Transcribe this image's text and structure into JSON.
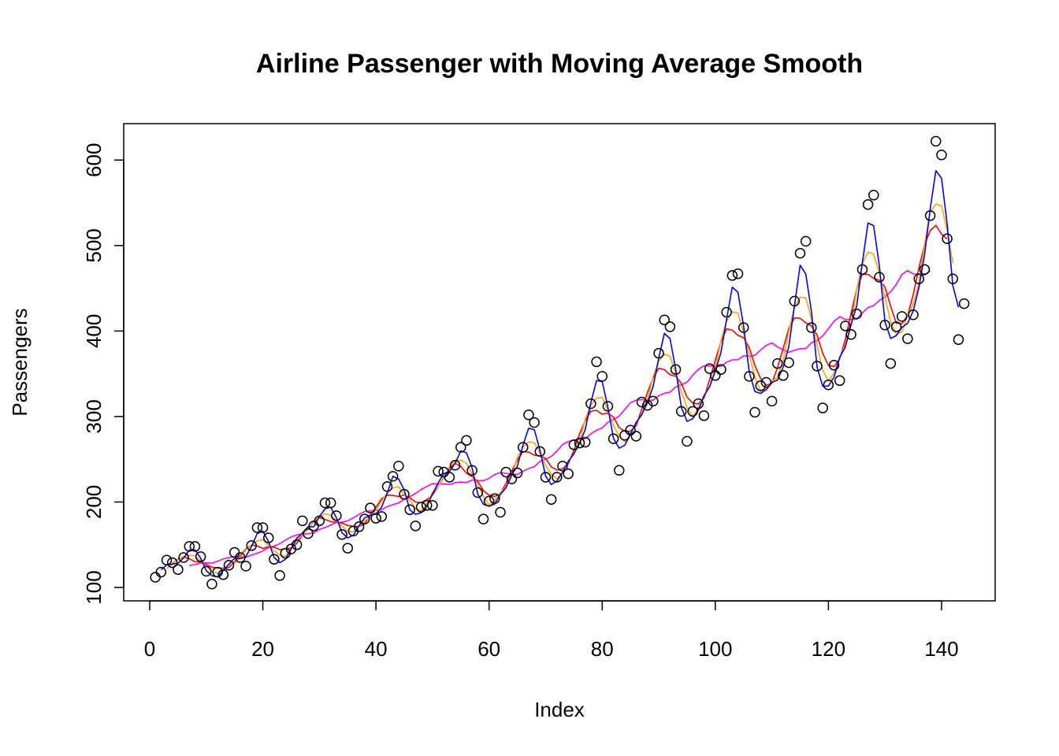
{
  "chart_data": {
    "type": "line",
    "title": "Airline Passenger with Moving Average Smooth",
    "xlabel": "Index",
    "ylabel": "Passengers",
    "xlim": [
      0,
      144
    ],
    "ylim": [
      100,
      622
    ],
    "x_ticks": [
      0,
      20,
      40,
      60,
      80,
      100,
      120,
      140
    ],
    "y_ticks": [
      100,
      200,
      300,
      400,
      500,
      600
    ],
    "grid": false,
    "legend": "none",
    "points": {
      "marker": "open-circle",
      "color": "#000000",
      "x_start": 1,
      "values": [
        112,
        118,
        132,
        129,
        121,
        135,
        148,
        148,
        136,
        119,
        104,
        118,
        115,
        126,
        141,
        135,
        125,
        149,
        170,
        170,
        158,
        133,
        114,
        140,
        145,
        150,
        178,
        163,
        172,
        178,
        199,
        199,
        184,
        162,
        146,
        166,
        171,
        180,
        193,
        181,
        183,
        218,
        230,
        242,
        209,
        191,
        172,
        194,
        196,
        196,
        236,
        235,
        229,
        243,
        264,
        272,
        237,
        211,
        180,
        201,
        204,
        188,
        235,
        227,
        234,
        264,
        302,
        293,
        259,
        229,
        203,
        229,
        242,
        233,
        267,
        269,
        270,
        315,
        364,
        347,
        312,
        274,
        237,
        278,
        284,
        277,
        317,
        313,
        318,
        374,
        413,
        405,
        355,
        306,
        271,
        306,
        315,
        301,
        356,
        348,
        355,
        422,
        465,
        467,
        404,
        347,
        305,
        336,
        340,
        318,
        362,
        348,
        363,
        435,
        491,
        505,
        404,
        359,
        310,
        337,
        360,
        342,
        406,
        396,
        420,
        472,
        548,
        559,
        463,
        407,
        362,
        405,
        417,
        391,
        419,
        461,
        472,
        535,
        622,
        606,
        508,
        461,
        390,
        432
      ]
    },
    "series": [
      {
        "color": "#0000ff",
        "window": 3,
        "x_start": 2
      },
      {
        "color": "#ffa500",
        "window": 5,
        "x_start": 3
      },
      {
        "color": "#ff0000",
        "window": 7,
        "x_start": 4
      },
      {
        "color": "#ff00ff",
        "window": 13,
        "x_start": 7
      }
    ]
  }
}
